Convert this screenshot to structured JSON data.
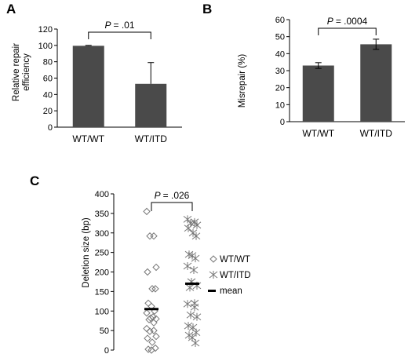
{
  "chart_data": [
    {
      "panel": "A",
      "type": "bar",
      "categories": [
        "WT/WT",
        "WT/ITD"
      ],
      "values": [
        99.5,
        53
      ],
      "errors": [
        0.5,
        26
      ],
      "ylabel_lines": [
        "Relative repair",
        "efficiency"
      ],
      "ylim": [
        0,
        120
      ],
      "yticks": [
        0,
        20,
        40,
        60,
        80,
        100,
        120
      ],
      "annotation": {
        "p_label": "P",
        "p_value": "= .01"
      },
      "bar_color": "#4a4a4a"
    },
    {
      "panel": "B",
      "type": "bar",
      "categories": [
        "WT/WT",
        "WT/ITD"
      ],
      "values": [
        33,
        45.5
      ],
      "errors": [
        1.7,
        3
      ],
      "ylabel": "Misrepair (%)",
      "ylim": [
        0,
        60
      ],
      "yticks": [
        0,
        10,
        20,
        30,
        40,
        50,
        60
      ],
      "annotation": {
        "p_label": "P",
        "p_value": "= .0004"
      },
      "bar_color": "#4a4a4a"
    },
    {
      "panel": "C",
      "type": "scatter",
      "ylabel": "Deletion size (bp)",
      "ylim": [
        0,
        400
      ],
      "yticks": [
        0,
        50,
        100,
        150,
        200,
        250,
        300,
        350,
        400
      ],
      "annotation": {
        "p_label": "P",
        "p_value": "= .026"
      },
      "series": [
        {
          "name": "WT/WT",
          "marker": "diamond",
          "values": [
            355,
            292,
            292,
            212,
            200,
            157,
            157,
            120,
            112,
            100,
            95,
            85,
            82,
            80,
            78,
            70,
            55,
            50,
            48,
            35,
            30,
            20,
            5,
            2,
            0
          ],
          "mean": 105
        },
        {
          "name": "WT/ITD",
          "marker": "asterisk",
          "values": [
            335,
            328,
            325,
            320,
            312,
            300,
            292,
            245,
            242,
            235,
            215,
            205,
            175,
            165,
            160,
            120,
            118,
            110,
            90,
            85,
            62,
            58,
            45,
            38,
            32,
            18
          ],
          "mean": 170
        }
      ],
      "legend": [
        "WT/WT",
        "WT/ITD",
        "mean"
      ],
      "legend_position": "right"
    }
  ]
}
